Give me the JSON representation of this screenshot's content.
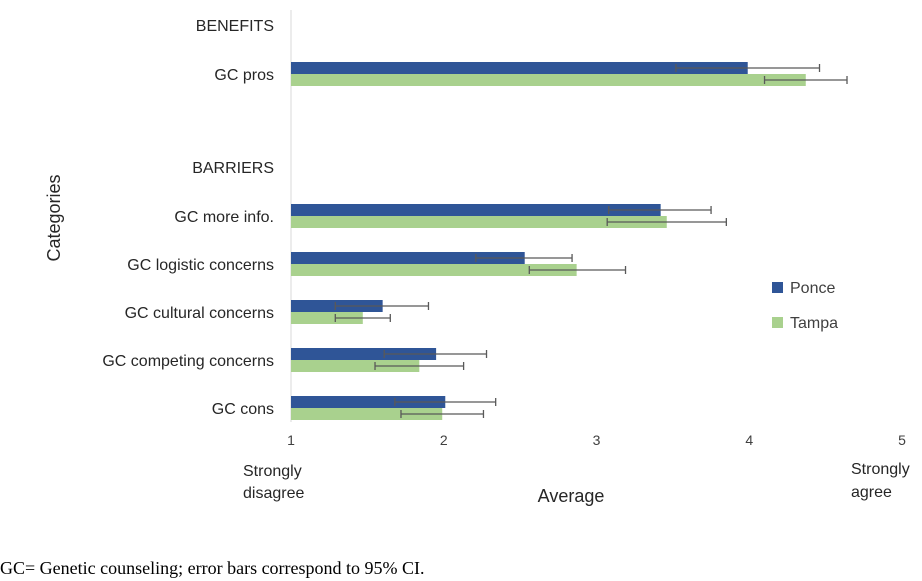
{
  "chart_data": {
    "type": "bar",
    "orientation": "horizontal",
    "categories": [
      "GC pros",
      "GC more info.",
      "GC logistic concerns",
      "GC cultural concerns",
      "GC competing concerns",
      "GC cons"
    ],
    "groups": [
      "BENEFITS",
      "BARRIERS"
    ],
    "series": [
      {
        "name": "Ponce",
        "color": "#2f5597",
        "values": [
          3.99,
          3.42,
          2.53,
          1.6,
          1.95,
          2.01
        ],
        "ci_low": [
          3.52,
          3.08,
          2.21,
          1.29,
          1.61,
          1.68
        ],
        "ci_high": [
          4.46,
          3.75,
          2.84,
          1.9,
          2.28,
          2.34
        ]
      },
      {
        "name": "Tampa",
        "color": "#a9d18e",
        "values": [
          4.37,
          3.46,
          2.87,
          1.47,
          1.84,
          1.99
        ],
        "ci_low": [
          4.1,
          3.07,
          2.56,
          1.29,
          1.55,
          1.72
        ],
        "ci_high": [
          4.64,
          3.85,
          3.19,
          1.65,
          2.13,
          2.26
        ]
      }
    ],
    "xlim": [
      1,
      5
    ],
    "xticks": [
      "1",
      "2",
      "3",
      "4",
      "5"
    ],
    "xlabel": "Average",
    "ylabel": "Categories",
    "x_min_label": "Strongly disagree",
    "x_max_label": "Strongly agree",
    "legend_position": "right",
    "grid": false
  },
  "footnote": "GC= Genetic counseling; error bars correspond to 95% CI."
}
